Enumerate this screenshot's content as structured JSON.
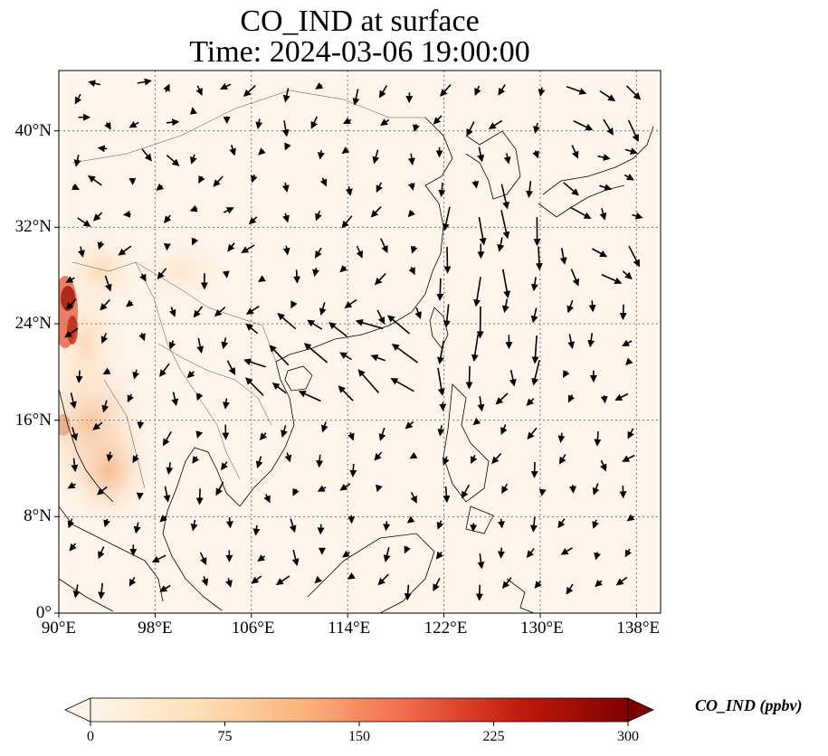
{
  "title": {
    "line1": "CO_IND at surface",
    "line2": "Time: 2024-03-06 19:00:00"
  },
  "map": {
    "lon_range": [
      90,
      140
    ],
    "lat_range": [
      0,
      45
    ],
    "lon_ticks": [
      {
        "value": 90,
        "label": "90°E"
      },
      {
        "value": 98,
        "label": "98°E"
      },
      {
        "value": 106,
        "label": "106°E"
      },
      {
        "value": 114,
        "label": "114°E"
      },
      {
        "value": 122,
        "label": "122°E"
      },
      {
        "value": 130,
        "label": "130°E"
      },
      {
        "value": 138,
        "label": "138°E"
      }
    ],
    "lat_ticks": [
      {
        "value": 0,
        "label": "0°"
      },
      {
        "value": 8,
        "label": "8°N"
      },
      {
        "value": 16,
        "label": "16°N"
      },
      {
        "value": 24,
        "label": "24°N"
      },
      {
        "value": 32,
        "label": "32°N"
      },
      {
        "value": 40,
        "label": "40°N"
      }
    ],
    "gridlines": true,
    "background_color": "#fff5eb",
    "wind_vectors": true,
    "high_concentration_region": "western edge near 90°E, 14–28°N"
  },
  "colorbar": {
    "label": "CO_IND (ppbv)",
    "ticks": [
      {
        "value": 0,
        "label": "0"
      },
      {
        "value": 75,
        "label": "75"
      },
      {
        "value": 150,
        "label": "150"
      },
      {
        "value": 225,
        "label": "225"
      },
      {
        "value": 300,
        "label": "300"
      }
    ],
    "min": 0,
    "max": 300,
    "extend": "both",
    "colormap": "OrRd",
    "colors": [
      "#fff5eb",
      "#fdd49e",
      "#fdae6b",
      "#f16913",
      "#d94801",
      "#a63603",
      "#7f0000"
    ]
  }
}
